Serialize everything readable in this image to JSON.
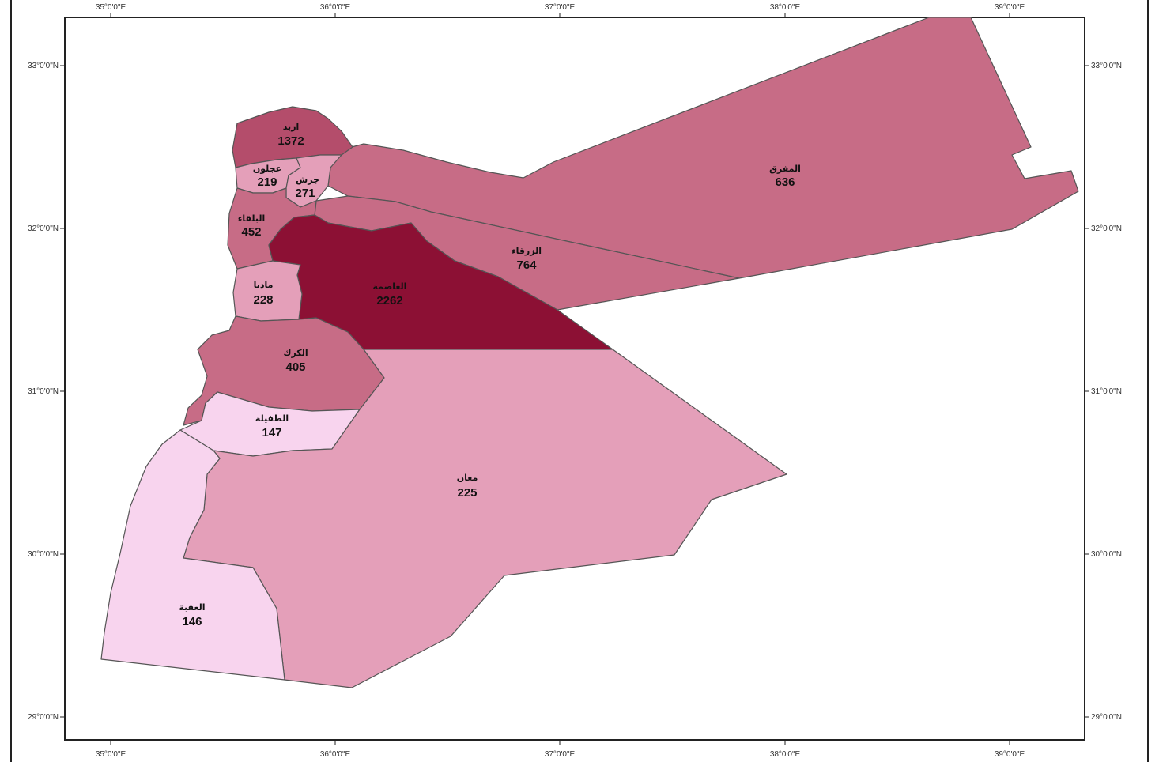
{
  "colors": {
    "class_1": "#f8d4ee",
    "class_2": "#e49fb9",
    "class_3": "#c76c86",
    "class_4": "#b44d6b",
    "class_5": "#8c1034",
    "border": "#555555",
    "frame": "#222222"
  },
  "axes": {
    "top_labels": [
      "35°0'0\"E",
      "36°0'0\"E",
      "37°0'0\"E",
      "38°0'0\"E",
      "39°0'0\"E"
    ],
    "bottom_labels": [
      "35°0'0\"E",
      "36°0'0\"E",
      "37°0'0\"E",
      "38°0'0\"E",
      "39°0'0\"E"
    ],
    "left_labels": [
      "33°0'0\"N",
      "32°0'0\"N",
      "31°0'0\"N",
      "30°0'0\"N",
      "29°0'0\"N"
    ],
    "right_labels": [
      "33°0'0\"N",
      "32°0'0\"N",
      "31°0'0\"N",
      "30°0'0\"N",
      "29°0'0\"N"
    ]
  },
  "governorates": [
    {
      "id": "mafraq",
      "name": "المفرق",
      "value": "636"
    },
    {
      "id": "zarqa",
      "name": "الزرقاء",
      "value": "764"
    },
    {
      "id": "irbid",
      "name": "اربد",
      "value": "1372"
    },
    {
      "id": "ajloun",
      "name": "عجلون",
      "value": "219"
    },
    {
      "id": "jerash",
      "name": "جرش",
      "value": "271"
    },
    {
      "id": "balqa",
      "name": "البلقاء",
      "value": "452"
    },
    {
      "id": "amman",
      "name": "العاصمة",
      "value": "2262"
    },
    {
      "id": "madaba",
      "name": "مادبا",
      "value": "228"
    },
    {
      "id": "karak",
      "name": "الكرك",
      "value": "405"
    },
    {
      "id": "tafilah",
      "name": "الطفيلة",
      "value": "147"
    },
    {
      "id": "maan",
      "name": "معان",
      "value": "225"
    },
    {
      "id": "aqaba",
      "name": "العقبة",
      "value": "146"
    }
  ]
}
